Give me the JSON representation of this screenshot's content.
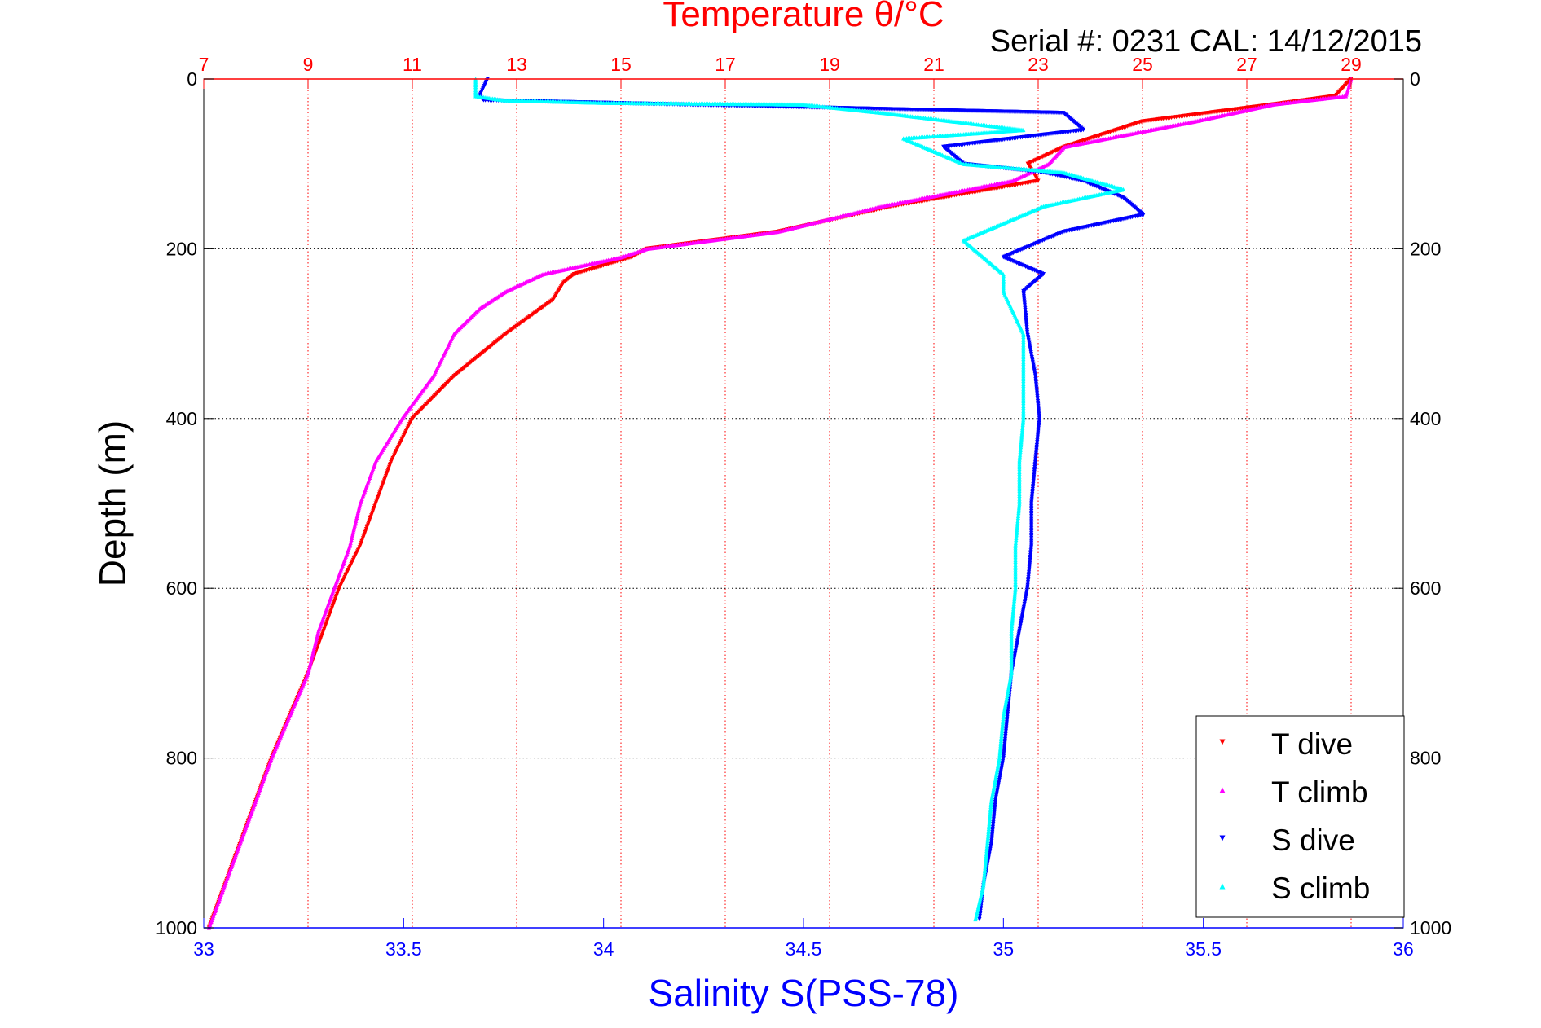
{
  "chart_data": {
    "type": "scatter",
    "title": "Temperature θ/°C",
    "subtitle": "Serial #: 0231  CAL: 14/12/2015",
    "xlabel": "Salinity S(PSS-78)",
    "ylabel": "Depth (m)",
    "x_bottom": {
      "label": "Salinity S(PSS-78)",
      "range": [
        33,
        36
      ],
      "ticks": [
        "33",
        "33.5",
        "34",
        "34.5",
        "35",
        "35.5",
        "36"
      ]
    },
    "x_top": {
      "label": "Temperature θ/°C",
      "range": [
        7,
        30
      ],
      "ticks": [
        "7",
        "9",
        "11",
        "13",
        "15",
        "17",
        "19",
        "21",
        "23",
        "25",
        "27",
        "29"
      ]
    },
    "y": {
      "label": "Depth (m)",
      "range": [
        0,
        1000
      ],
      "reversed": true,
      "ticks": [
        "0",
        "200",
        "400",
        "600",
        "800",
        "1000"
      ]
    },
    "grid": true,
    "legend_position": "bottom-right",
    "colors": {
      "temperature_axis": "#ff0000",
      "salinity_axis": "#0000ff",
      "T dive": "#ff0000",
      "T climb": "#ff00ff",
      "S dive": "#0000ff",
      "S climb": "#00ffff"
    },
    "series": [
      {
        "name": "T dive",
        "axis": "temperature",
        "marker": "down-triangle",
        "depth": [
          0,
          20,
          30,
          50,
          80,
          100,
          120,
          150,
          180,
          200,
          210,
          230,
          240,
          260,
          300,
          350,
          400,
          450,
          500,
          550,
          600,
          650,
          700,
          800,
          900,
          1000
        ],
        "value": [
          29.0,
          28.7,
          27.5,
          25.0,
          23.5,
          22.8,
          23.0,
          20.2,
          18.0,
          15.5,
          15.2,
          14.1,
          13.9,
          13.7,
          12.8,
          11.8,
          11.0,
          10.6,
          10.3,
          10.0,
          9.6,
          9.3,
          9.0,
          8.3,
          7.7,
          7.1
        ]
      },
      {
        "name": "T climb",
        "axis": "temperature",
        "marker": "up-triangle",
        "depth": [
          0,
          20,
          30,
          50,
          80,
          100,
          120,
          150,
          180,
          200,
          210,
          230,
          250,
          270,
          300,
          350,
          400,
          450,
          500,
          550,
          600,
          650,
          700,
          800,
          900,
          1000
        ],
        "value": [
          29.0,
          28.9,
          27.5,
          26.0,
          23.5,
          23.2,
          22.5,
          20.0,
          18.0,
          15.5,
          15.0,
          13.5,
          12.8,
          12.3,
          11.8,
          11.4,
          10.8,
          10.3,
          10.0,
          9.8,
          9.5,
          9.2,
          9.0,
          8.3,
          7.7,
          7.1
        ]
      },
      {
        "name": "S dive",
        "axis": "salinity",
        "marker": "down-triangle",
        "depth": [
          0,
          20,
          25,
          40,
          60,
          80,
          100,
          110,
          120,
          140,
          160,
          180,
          200,
          210,
          230,
          250,
          300,
          350,
          400,
          450,
          500,
          550,
          600,
          650,
          700,
          750,
          800,
          850,
          900,
          950,
          990
        ],
        "value": [
          33.71,
          33.69,
          33.7,
          35.15,
          35.2,
          34.85,
          34.9,
          35.1,
          35.2,
          35.3,
          35.35,
          35.15,
          35.05,
          35.0,
          35.1,
          35.05,
          35.06,
          35.08,
          35.09,
          35.08,
          35.07,
          35.07,
          35.06,
          35.04,
          35.02,
          35.01,
          35.0,
          34.98,
          34.97,
          34.95,
          34.94
        ]
      },
      {
        "name": "S climb",
        "axis": "salinity",
        "marker": "up-triangle",
        "depth": [
          0,
          20,
          25,
          28,
          30,
          40,
          60,
          70,
          100,
          110,
          130,
          150,
          170,
          180,
          190,
          210,
          230,
          250,
          300,
          350,
          400,
          450,
          500,
          550,
          600,
          650,
          700,
          750,
          800,
          850,
          900,
          950,
          990
        ],
        "value": [
          33.68,
          33.68,
          33.75,
          34.0,
          34.5,
          34.7,
          35.05,
          34.75,
          34.9,
          35.15,
          35.3,
          35.1,
          35.0,
          34.95,
          34.9,
          34.95,
          35.0,
          35.0,
          35.05,
          35.05,
          35.05,
          35.04,
          35.04,
          35.03,
          35.03,
          35.02,
          35.02,
          35.0,
          34.99,
          34.97,
          34.96,
          34.95,
          34.93
        ]
      }
    ]
  }
}
